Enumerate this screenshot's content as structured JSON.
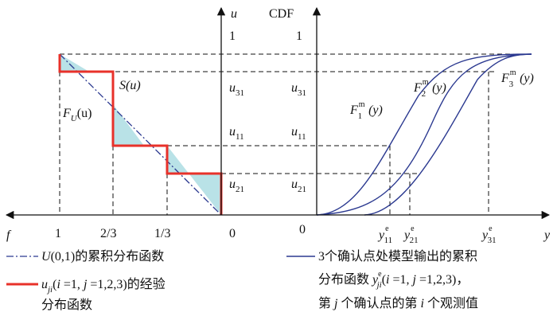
{
  "left_panel": {
    "x_axis": {
      "label": "f",
      "ticks": [
        "1",
        "2/3",
        "1/3",
        "0"
      ]
    },
    "y_axis": {
      "label": "u",
      "ticks": [
        "1"
      ]
    },
    "curve_labels": {
      "empirical": "S(u)",
      "theoretical": "F",
      "theoretical_sub": "U",
      "theoretical_arg": "(u)"
    }
  },
  "middle_ticks": {
    "u31": {
      "base": "u",
      "sub": "31"
    },
    "u11": {
      "base": "u",
      "sub": "11"
    },
    "u21": {
      "base": "u",
      "sub": "21"
    }
  },
  "right_panel": {
    "y_axis": {
      "label": "CDF",
      "ticks": [
        "1"
      ]
    },
    "origin": "0",
    "x_axis": {
      "label": "y"
    },
    "x_ticks": [
      {
        "base": "y",
        "sup": "e",
        "sub": "11"
      },
      {
        "base": "y",
        "sup": "e",
        "sub": "21"
      },
      {
        "base": "y",
        "sup": "e",
        "sub": "31"
      }
    ],
    "curves": [
      {
        "base": "F",
        "sup": "m",
        "sub": "1",
        "arg": "(y)"
      },
      {
        "base": "F",
        "sup": "m",
        "sub": "2",
        "arg": "(y)"
      },
      {
        "base": "F",
        "sup": "m",
        "sub": "3",
        "arg": "(y)"
      }
    ]
  },
  "legend": {
    "item1": {
      "text_a": "U",
      "text_b": "(0,1)的累积分布函数"
    },
    "item2": {
      "text_a": "u",
      "sub": "ji",
      "text_b": "(",
      "i1": "i",
      "text_c": " =1, ",
      "j1": "j",
      "text_d": " =1,2,3)的经验",
      "line2": "分布函数"
    },
    "item3": {
      "line1": "3个确认点处模型输出的累积",
      "line2_a": "分布函数 ",
      "line2_y": "y",
      "line2_sup": "e",
      "line2_sub": "ji",
      "line2_b": "(",
      "line2_i": "i",
      "line2_c": " =1, ",
      "line2_j": "j",
      "line2_d": " =1,2,3)，",
      "line3_a": "第 ",
      "line3_j": "j",
      "line3_b": " 个确认点的第 ",
      "line3_i": "i",
      "line3_c": " 个观测值"
    }
  },
  "colors": {
    "empirical": "#e8312a",
    "model": "#2b3990",
    "fill": "#b9e2e7",
    "axis": "#111111"
  }
}
